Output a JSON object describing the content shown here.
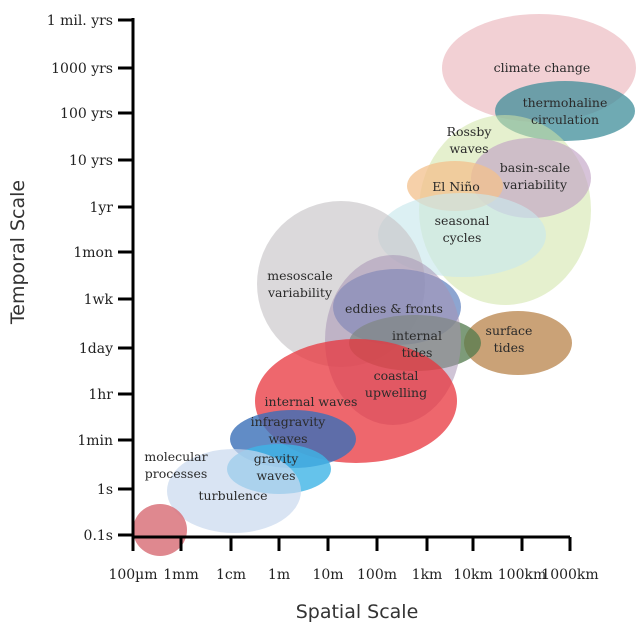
{
  "diagram": {
    "x_axis_title": "Spatial Scale",
    "y_axis_title": "Temporal Scale",
    "x_ticks": [
      "100µm",
      "1mm",
      "1cm",
      "1m",
      "10m",
      "100m",
      "1km",
      "10km",
      "100km",
      "1000km"
    ],
    "y_ticks": [
      "0.1s",
      "1s",
      "1min",
      "1hr",
      "1day",
      "1wk",
      "1mon",
      "1yr",
      "10 yrs",
      "100 yrs",
      "1000 yrs",
      "1 mil. yrs"
    ],
    "processes": [
      {
        "id": "climate-change",
        "lines": [
          "climate change"
        ],
        "color": "#e7a9b0",
        "opacity": 0.55
      },
      {
        "id": "thermohaline-circulation",
        "lines": [
          "thermohaline",
          "circulation"
        ],
        "color": "#3f8e9a",
        "opacity": 0.75
      },
      {
        "id": "rossby-waves",
        "lines": [
          "Rossby",
          "waves"
        ],
        "color": "#cfe3a6",
        "opacity": 0.55
      },
      {
        "id": "basin-scale-variability",
        "lines": [
          "basin-scale",
          "variability"
        ],
        "color": "#c1a3c4",
        "opacity": 0.65
      },
      {
        "id": "el-nino",
        "lines": [
          "El Niño"
        ],
        "color": "#f3c08c",
        "opacity": 0.75
      },
      {
        "id": "seasonal-cycles",
        "lines": [
          "seasonal",
          "cycles"
        ],
        "color": "#c9e8ec",
        "opacity": 0.65
      },
      {
        "id": "mesoscale-variability",
        "lines": [
          "mesoscale",
          "variability"
        ],
        "color": "#c7c5c7",
        "opacity": 0.65
      },
      {
        "id": "eddies-fronts",
        "lines": [
          "eddies & fronts"
        ],
        "color": "#5c7fbd",
        "opacity": 0.7
      },
      {
        "id": "surface-tides",
        "lines": [
          "surface",
          "tides"
        ],
        "color": "#b37a3d",
        "opacity": 0.7
      },
      {
        "id": "internal-tides",
        "lines": [
          "internal",
          "tides"
        ],
        "color": "#517a4c",
        "opacity": 0.75
      },
      {
        "id": "coastal-upwelling",
        "lines": [
          "coastal",
          "upwelling"
        ],
        "color": "#a894b4",
        "opacity": 0.55
      },
      {
        "id": "internal-waves",
        "lines": [
          "internal waves"
        ],
        "color": "#e8343c",
        "opacity": 0.75
      },
      {
        "id": "infragravity-waves",
        "lines": [
          "infragravity",
          "waves"
        ],
        "color": "#3a6fb8",
        "opacity": 0.8
      },
      {
        "id": "gravity-waves",
        "lines": [
          "gravity",
          "waves"
        ],
        "color": "#3fb4e6",
        "opacity": 0.8
      },
      {
        "id": "turbulence",
        "lines": [
          "turbulence"
        ],
        "color": "#c9d9ee",
        "opacity": 0.7
      },
      {
        "id": "molecular-processes",
        "lines": [
          "molecular",
          "processes"
        ],
        "color": "#d9737b",
        "opacity": 0.85
      }
    ]
  }
}
